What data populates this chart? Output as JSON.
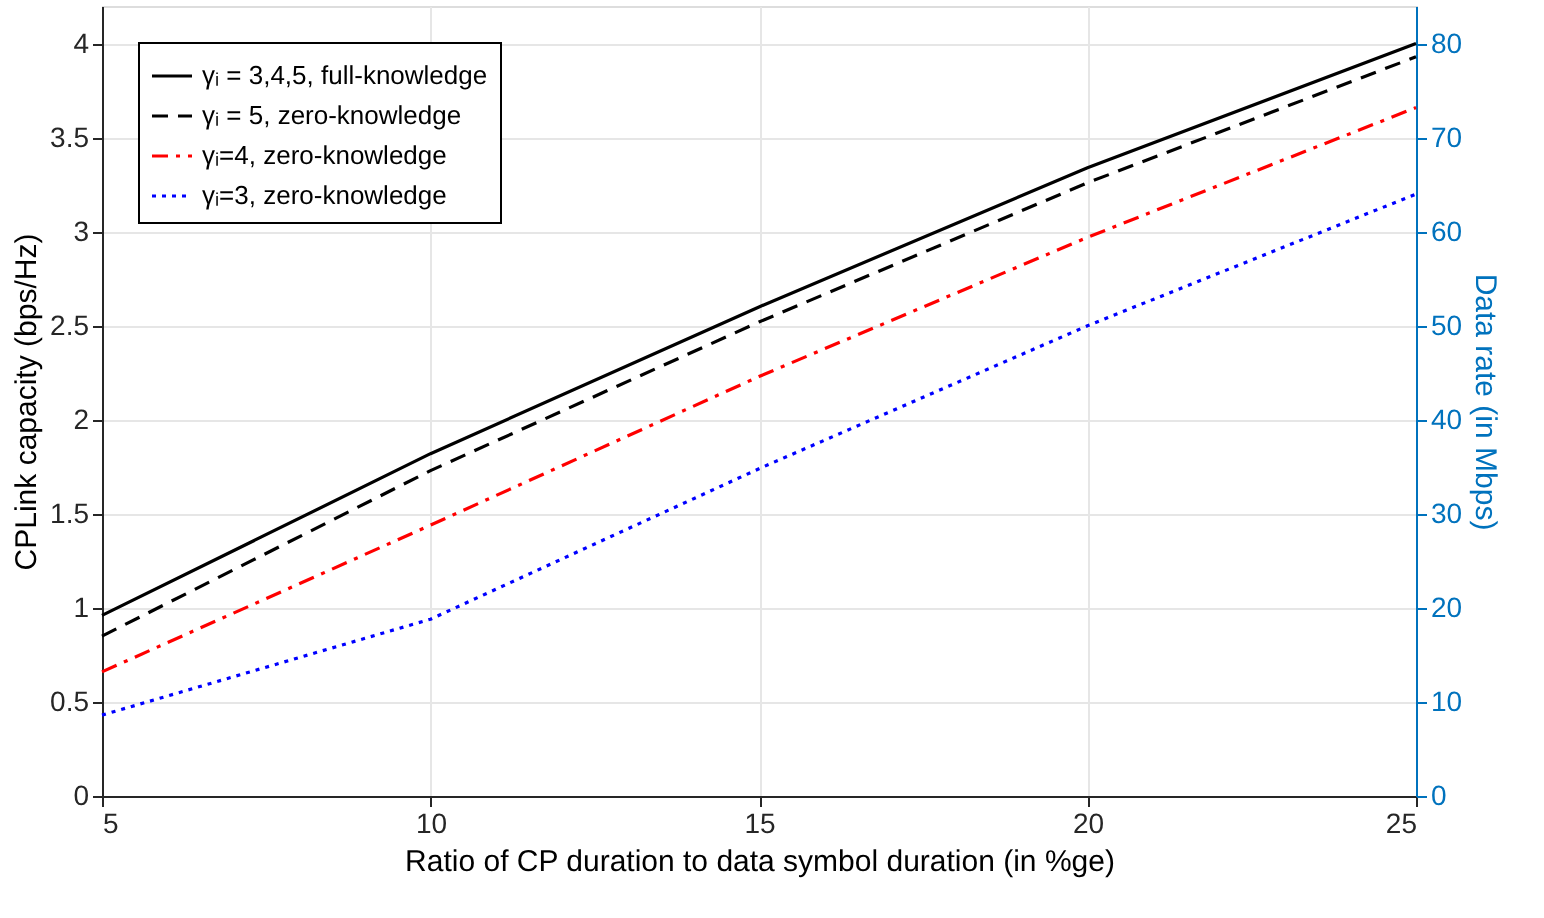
{
  "chart_data": {
    "type": "line",
    "xlabel": "Ratio of CP duration to data symbol duration (in %ge)",
    "ylabel": "CPLink capacity (bps/Hz)",
    "y2label": "Data rate (in Mbps)",
    "x": [
      5,
      10,
      15,
      20,
      25
    ],
    "series": [
      {
        "name": "γᵢ = 3,4,5, full-knowledge",
        "color": "#000000",
        "line_style": "solid",
        "values": [
          0.96,
          1.82,
          2.6,
          3.34,
          4.0
        ]
      },
      {
        "name": "γᵢ = 5, zero-knowledge",
        "color": "#000000",
        "line_style": "dashed",
        "values": [
          0.85,
          1.73,
          2.52,
          3.26,
          3.93
        ]
      },
      {
        "name": "γᵢ=4, zero-knowledge",
        "color": "#ff0000",
        "line_style": "dashdot",
        "values": [
          0.66,
          1.44,
          2.23,
          2.97,
          3.66
        ]
      },
      {
        "name": "γᵢ=3, zero-knowledge",
        "color": "#0000ff",
        "line_style": "dotted",
        "values": [
          0.43,
          0.94,
          1.74,
          2.5,
          3.2
        ]
      }
    ],
    "xlim": [
      5,
      25
    ],
    "xticks": [
      5,
      10,
      15,
      20,
      25
    ],
    "ylim": [
      0,
      4.2
    ],
    "yticks": [
      0,
      0.5,
      1,
      1.5,
      2,
      2.5,
      3,
      3.5,
      4
    ],
    "y2lim": [
      0,
      84
    ],
    "y2ticks": [
      0,
      10,
      20,
      30,
      40,
      50,
      60,
      70,
      80
    ],
    "grid": true,
    "legend": "top left",
    "marker": "none"
  }
}
